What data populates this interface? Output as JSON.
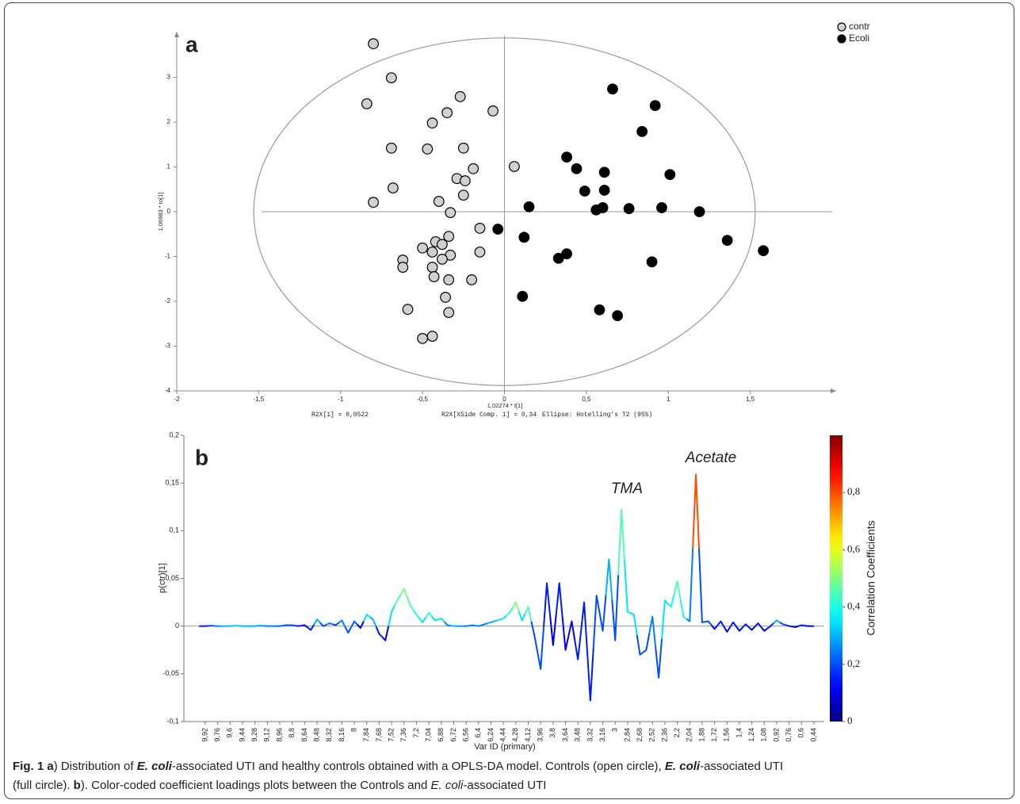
{
  "chart_data": [
    {
      "type": "scatter",
      "panel_label": "a",
      "xlabel": "1,02274 * t[1]",
      "ylabel": "1,06983 * to[1]",
      "footnotes": [
        "R2X[1] = 0,0522",
        "R2X[XSide Comp. 1] = 0,34",
        "Ellipse: Hotelling's T2 (95%)"
      ],
      "xlim": [
        -2,
        2
      ],
      "ylim": [
        -4,
        3.93
      ],
      "xticks": [
        -2,
        {
          "value": -1.5,
          "label": "-1,5"
        },
        -1,
        {
          "value": -0.5,
          "label": "-0,5"
        },
        0,
        {
          "value": 0.5,
          "label": "0,5"
        },
        1,
        {
          "value": 1.5,
          "label": "1,5"
        }
      ],
      "yticks": [
        -4,
        -3,
        -2,
        -1,
        0,
        1,
        2,
        3
      ],
      "ellipse_radii": [
        1.53,
        3.88
      ],
      "legend": "top-right",
      "series": [
        {
          "name": "contr",
          "color": "#d0d0d0",
          "x": [
            -0.8,
            -0.69,
            -0.84,
            -0.27,
            -0.35,
            -0.07,
            -0.44,
            -0.69,
            -0.47,
            -0.25,
            -0.19,
            -0.29,
            -0.24,
            -0.68,
            -0.25,
            -0.8,
            -0.4,
            -0.33,
            -0.15,
            -0.42,
            -0.38,
            -0.34,
            -0.5,
            -0.44,
            -0.33,
            -0.15,
            -0.62,
            -0.62,
            -0.44,
            -0.38,
            -0.43,
            -0.34,
            -0.2,
            -0.36,
            -0.59,
            -0.34,
            -0.44,
            -0.5,
            0.06
          ],
          "values": [
            3.75,
            2.99,
            2.41,
            2.57,
            2.21,
            2.25,
            1.98,
            1.42,
            1.4,
            1.42,
            0.96,
            0.74,
            0.69,
            0.53,
            0.37,
            0.21,
            0.23,
            -0.02,
            -0.37,
            -0.67,
            -0.73,
            -0.55,
            -0.81,
            -0.9,
            -0.97,
            -0.9,
            -1.08,
            -1.24,
            -1.24,
            -1.06,
            -1.45,
            -1.52,
            -1.52,
            -1.91,
            -2.18,
            -2.25,
            -2.78,
            -2.83,
            1.01
          ]
        },
        {
          "name": "Ecoli",
          "color": "#000000",
          "x": [
            0.66,
            0.92,
            0.84,
            0.38,
            0.44,
            0.61,
            1.01,
            0.49,
            0.61,
            0.15,
            0.56,
            0.6,
            0.76,
            0.96,
            1.19,
            -0.04,
            0.12,
            1.36,
            1.58,
            0.33,
            0.38,
            0.9,
            0.11,
            0.58,
            0.69
          ],
          "values": [
            2.74,
            2.37,
            1.79,
            1.22,
            0.96,
            0.88,
            0.83,
            0.46,
            0.48,
            0.11,
            0.04,
            0.09,
            0.07,
            0.09,
            0.0,
            -0.39,
            -0.57,
            -0.64,
            -0.87,
            -1.04,
            -0.94,
            -1.12,
            -1.89,
            -2.19,
            -2.32
          ]
        }
      ]
    },
    {
      "type": "line",
      "panel_label": "b",
      "xlabel": "Var ID (primary)",
      "ylabel": "p(ctr)[1]",
      "annotations": [
        "TMA",
        "Acetate"
      ],
      "ylim": [
        -0.1,
        0.2
      ],
      "yticks": [
        {
          "value": -0.1,
          "label": "-0,1"
        },
        {
          "value": -0.05,
          "label": "-0,05"
        },
        0,
        {
          "value": 0.05,
          "label": "0,05"
        },
        {
          "value": 0.1,
          "label": "0,1"
        },
        {
          "value": 0.15,
          "label": "0,15"
        },
        {
          "value": 0.2,
          "label": "0,2"
        }
      ],
      "xticks": [
        {
          "value": 9.92,
          "label": "9,92"
        },
        {
          "value": 9.76,
          "label": "9,76"
        },
        {
          "value": 9.6,
          "label": "9,6"
        },
        {
          "value": 9.44,
          "label": "9,44"
        },
        {
          "value": 9.28,
          "label": "9,28"
        },
        {
          "value": 9.12,
          "label": "9,12"
        },
        {
          "value": 8.96,
          "label": "8,96"
        },
        {
          "value": 8.8,
          "label": "8,8"
        },
        {
          "value": 8.64,
          "label": "8,64"
        },
        {
          "value": 8.48,
          "label": "8,48"
        },
        {
          "value": 8.32,
          "label": "8,32"
        },
        {
          "value": 8.16,
          "label": "8,16"
        },
        8,
        {
          "value": 7.84,
          "label": "7,84"
        },
        {
          "value": 7.68,
          "label": "7,68"
        },
        {
          "value": 7.52,
          "label": "7,52"
        },
        {
          "value": 7.36,
          "label": "7,36"
        },
        {
          "value": 7.2,
          "label": "7,2"
        },
        {
          "value": 7.04,
          "label": "7,04"
        },
        {
          "value": 6.88,
          "label": "6,88"
        },
        {
          "value": 6.72,
          "label": "6,72"
        },
        {
          "value": 6.56,
          "label": "6,56"
        },
        {
          "value": 6.4,
          "label": "6,4"
        },
        {
          "value": 6.24,
          "label": "6,24"
        },
        {
          "value": 4.44,
          "label": "4,44"
        },
        {
          "value": 4.28,
          "label": "4,28"
        },
        {
          "value": 4.12,
          "label": "4,12"
        },
        {
          "value": 3.96,
          "label": "3,96"
        },
        {
          "value": 3.8,
          "label": "3,8"
        },
        {
          "value": 3.64,
          "label": "3,64"
        },
        {
          "value": 3.48,
          "label": "3,48"
        },
        {
          "value": 3.32,
          "label": "3,32"
        },
        {
          "value": 3.16,
          "label": "3,16"
        },
        3,
        {
          "value": 2.84,
          "label": "2,84"
        },
        {
          "value": 2.68,
          "label": "2,68"
        },
        {
          "value": 2.52,
          "label": "2,52"
        },
        {
          "value": 2.36,
          "label": "2,36"
        },
        {
          "value": 2.2,
          "label": "2,2"
        },
        {
          "value": 2.04,
          "label": "2,04"
        },
        {
          "value": 1.88,
          "label": "1,88"
        },
        {
          "value": 1.72,
          "label": "1,72"
        },
        {
          "value": 1.56,
          "label": "1,56"
        },
        {
          "value": 1.4,
          "label": "1,4"
        },
        {
          "value": 1.24,
          "label": "1,24"
        },
        {
          "value": 1.08,
          "label": "1,08"
        },
        {
          "value": 0.92,
          "label": "0,92"
        },
        {
          "value": 0.76,
          "label": "0,76"
        },
        {
          "value": 0.6,
          "label": "0,6"
        },
        {
          "value": 0.44,
          "label": "0,44"
        }
      ],
      "x": [
        10.0,
        9.92,
        9.84,
        9.76,
        9.68,
        9.6,
        9.52,
        9.44,
        9.36,
        9.28,
        9.2,
        9.12,
        9.04,
        8.96,
        8.88,
        8.8,
        8.72,
        8.64,
        8.56,
        8.48,
        8.4,
        8.32,
        8.24,
        8.16,
        8.08,
        8.0,
        7.92,
        7.84,
        7.76,
        7.68,
        7.6,
        7.52,
        7.44,
        7.36,
        7.28,
        7.2,
        7.12,
        7.04,
        6.96,
        6.88,
        6.8,
        6.72,
        6.64,
        6.56,
        6.48,
        6.4,
        6.32,
        6.24,
        4.44,
        4.36,
        4.28,
        4.2,
        4.12,
        4.04,
        3.96,
        3.88,
        3.8,
        3.72,
        3.64,
        3.56,
        3.48,
        3.4,
        3.32,
        3.24,
        3.16,
        3.08,
        3.0,
        2.92,
        2.84,
        2.76,
        2.68,
        2.6,
        2.52,
        2.44,
        2.36,
        2.28,
        2.2,
        2.12,
        2.04,
        1.96,
        1.88,
        1.8,
        1.72,
        1.64,
        1.56,
        1.48,
        1.4,
        1.32,
        1.24,
        1.16,
        1.08,
        1.0,
        0.92,
        0.84,
        0.76,
        0.68,
        0.6,
        0.52,
        0.44
      ],
      "values": [
        0,
        0,
        0.0005,
        0,
        0,
        0,
        0.0005,
        0,
        0,
        0,
        0.0005,
        0,
        0,
        0,
        0.001,
        0.001,
        0,
        0.001,
        -0.004,
        0.007,
        0,
        0.003,
        0.001,
        0.006,
        -0.007,
        0.005,
        -0.002,
        0.012,
        0.007,
        -0.008,
        -0.015,
        0.015,
        0.028,
        0.039,
        0.022,
        0.012,
        0.004,
        0.014,
        0.006,
        0.008,
        0.001,
        0,
        0,
        0,
        0.001,
        0,
        0.002,
        0.004,
        0.008,
        0.014,
        0.025,
        0.006,
        0.02,
        -0.01,
        -0.045,
        0.045,
        -0.02,
        0.045,
        -0.025,
        0.005,
        -0.035,
        0.025,
        -0.078,
        0.032,
        -0.005,
        0.07,
        -0.015,
        0.122,
        0.015,
        0.012,
        -0.03,
        -0.025,
        0.01,
        -0.054,
        0.027,
        0.02,
        0.047,
        0.01,
        0.005,
        0.159,
        0.004,
        0.005,
        -0.003,
        0.005,
        -0.006,
        0.004,
        -0.005,
        0.002,
        -0.004,
        0.003,
        -0.005,
        0,
        0.006,
        0.002,
        0,
        -0.001,
        0.001,
        0,
        0
      ],
      "correlation": [
        0.15,
        0.15,
        0.2,
        0.25,
        0.3,
        0.32,
        0.32,
        0.3,
        0.3,
        0.3,
        0.28,
        0.25,
        0.25,
        0.22,
        0.2,
        0.2,
        0.15,
        0.12,
        0.15,
        0.3,
        0.2,
        0.25,
        0.2,
        0.25,
        0.2,
        0.22,
        0.1,
        0.35,
        0.3,
        0.15,
        0.1,
        0.35,
        0.45,
        0.5,
        0.45,
        0.4,
        0.35,
        0.42,
        0.35,
        0.35,
        0.25,
        0.3,
        0.28,
        0.25,
        0.25,
        0.25,
        0.25,
        0.3,
        0.35,
        0.42,
        0.5,
        0.35,
        0.45,
        0.2,
        0.2,
        0.15,
        0.1,
        0.15,
        0.12,
        0.1,
        0.15,
        0.15,
        0.15,
        0.2,
        0.2,
        0.3,
        0.2,
        0.45,
        0.35,
        0.35,
        0.2,
        0.2,
        0.25,
        0.2,
        0.35,
        0.4,
        0.45,
        0.4,
        0.25,
        0.8,
        0.2,
        0.2,
        0.1,
        0.15,
        0.1,
        0.15,
        0.1,
        0.15,
        0.1,
        0.15,
        0.1,
        0.15,
        0.3,
        0.2,
        0.15,
        0.1,
        0.15,
        0.1,
        0.1
      ],
      "colormap": "jet",
      "colorbar_label": "Correlation Coefficients",
      "clim": [
        0,
        1
      ],
      "colorbar_ticks": [
        0,
        {
          "value": 0.2,
          "label": "0,2"
        },
        {
          "value": 0.4,
          "label": "0,4"
        },
        {
          "value": 0.6,
          "label": "0,6"
        },
        {
          "value": 0.8,
          "label": "0,8"
        }
      ]
    }
  ],
  "caption": {
    "segments": [
      "Fig. 1 a",
      ") Distribution of ",
      "E. coli",
      "-associated UTI and healthy controls obtained with a OPLS-DA model. Controls (open circle), ",
      "E. coli",
      "-associated UTI",
      "(full circle). ",
      "b",
      "). Color-coded coefficient loadings plots between the Controls and ",
      "E. coli",
      "-associated UTI"
    ]
  }
}
